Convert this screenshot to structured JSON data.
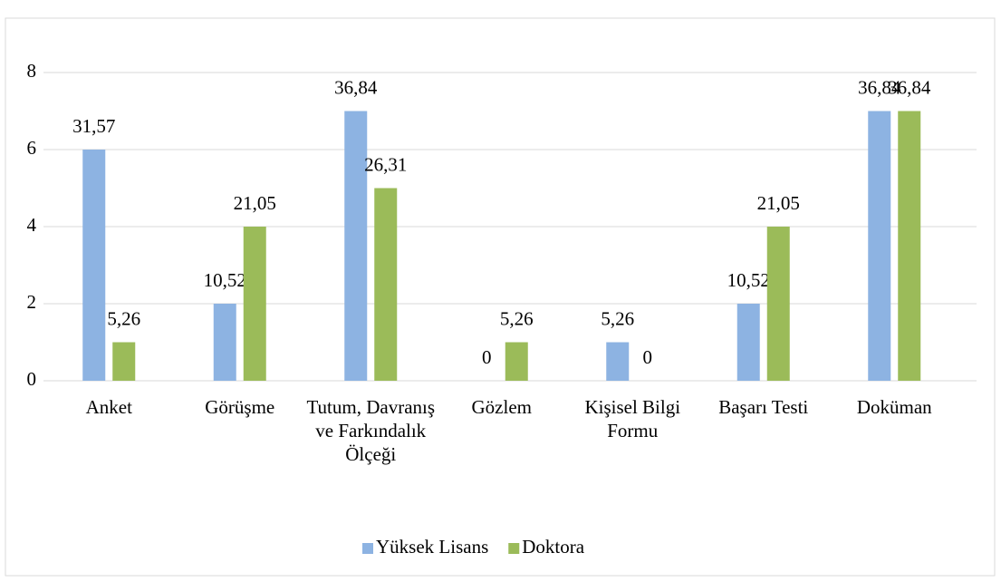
{
  "chart_data": {
    "type": "bar",
    "categories": [
      "Anket",
      "Görüşme",
      "Tutum, Davranış ve Farkındalık Ölçeği",
      "Gözlem",
      "Kişisel Bilgi Formu",
      "Başarı Testi",
      "Doküman"
    ],
    "series": [
      {
        "name": "Yüksek Lisans",
        "color": "#8db3e2",
        "values": [
          6,
          2,
          7,
          0,
          1,
          2,
          7
        ],
        "labels": [
          "31,57",
          "10,52",
          "36,84",
          "0",
          "5,26",
          "10,52",
          "36,84"
        ]
      },
      {
        "name": "Doktora",
        "color": "#9bbb59",
        "values": [
          1,
          4,
          5,
          1,
          0,
          4,
          7
        ],
        "labels": [
          "5,26",
          "21,05",
          "26,31",
          "5,26",
          "0",
          "21,05",
          "36,84"
        ]
      }
    ],
    "ylim": [
      0,
      8
    ],
    "yticks": [
      0,
      2,
      4,
      6,
      8
    ],
    "grid": true,
    "legend": "bottom"
  }
}
